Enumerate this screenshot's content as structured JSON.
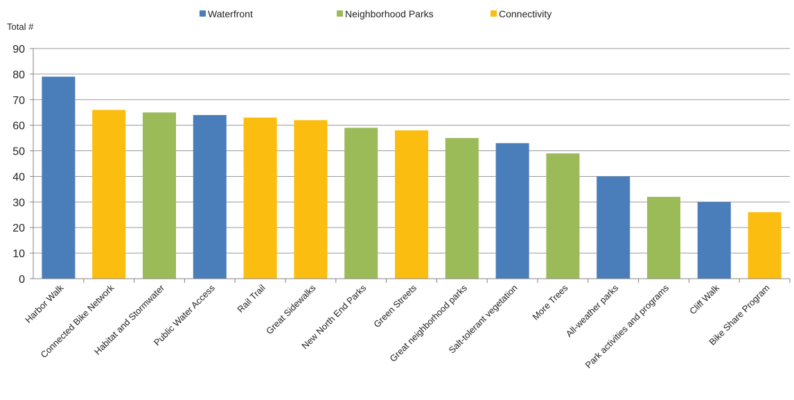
{
  "chart_data": {
    "type": "bar",
    "ylabel": "Total #",
    "ylim": [
      0,
      90
    ],
    "yticks": [
      0,
      10,
      20,
      30,
      40,
      50,
      60,
      70,
      80,
      90
    ],
    "grid": true,
    "legend_position": "top-center",
    "groups": [
      {
        "name": "Waterfront",
        "color": "#4a7ebb"
      },
      {
        "name": "Neighborhood Parks",
        "color": "#9bbb59"
      },
      {
        "name": "Connectivity",
        "color": "#fbbd0f"
      }
    ],
    "categories": [
      "Harbor Walk",
      "Connected Bike Network",
      "Habitat and Stormwater",
      "Public Water Access",
      "Rail Trail",
      "Great Sidewalks",
      "New North End Parks",
      "Green Streets",
      "Great neighborhood parks",
      "Salt-tolerant vegetation",
      "More Trees",
      "All-weather parks",
      "Park activities and programs",
      "Cliff Walk",
      "Bike Share Program"
    ],
    "values": [
      79,
      66,
      65,
      64,
      63,
      62,
      59,
      58,
      55,
      53,
      49,
      40,
      32,
      30,
      26
    ],
    "bar_groups": [
      "Waterfront",
      "Connectivity",
      "Neighborhood Parks",
      "Waterfront",
      "Connectivity",
      "Connectivity",
      "Neighborhood Parks",
      "Connectivity",
      "Neighborhood Parks",
      "Waterfront",
      "Neighborhood Parks",
      "Waterfront",
      "Neighborhood Parks",
      "Waterfront",
      "Connectivity"
    ]
  }
}
